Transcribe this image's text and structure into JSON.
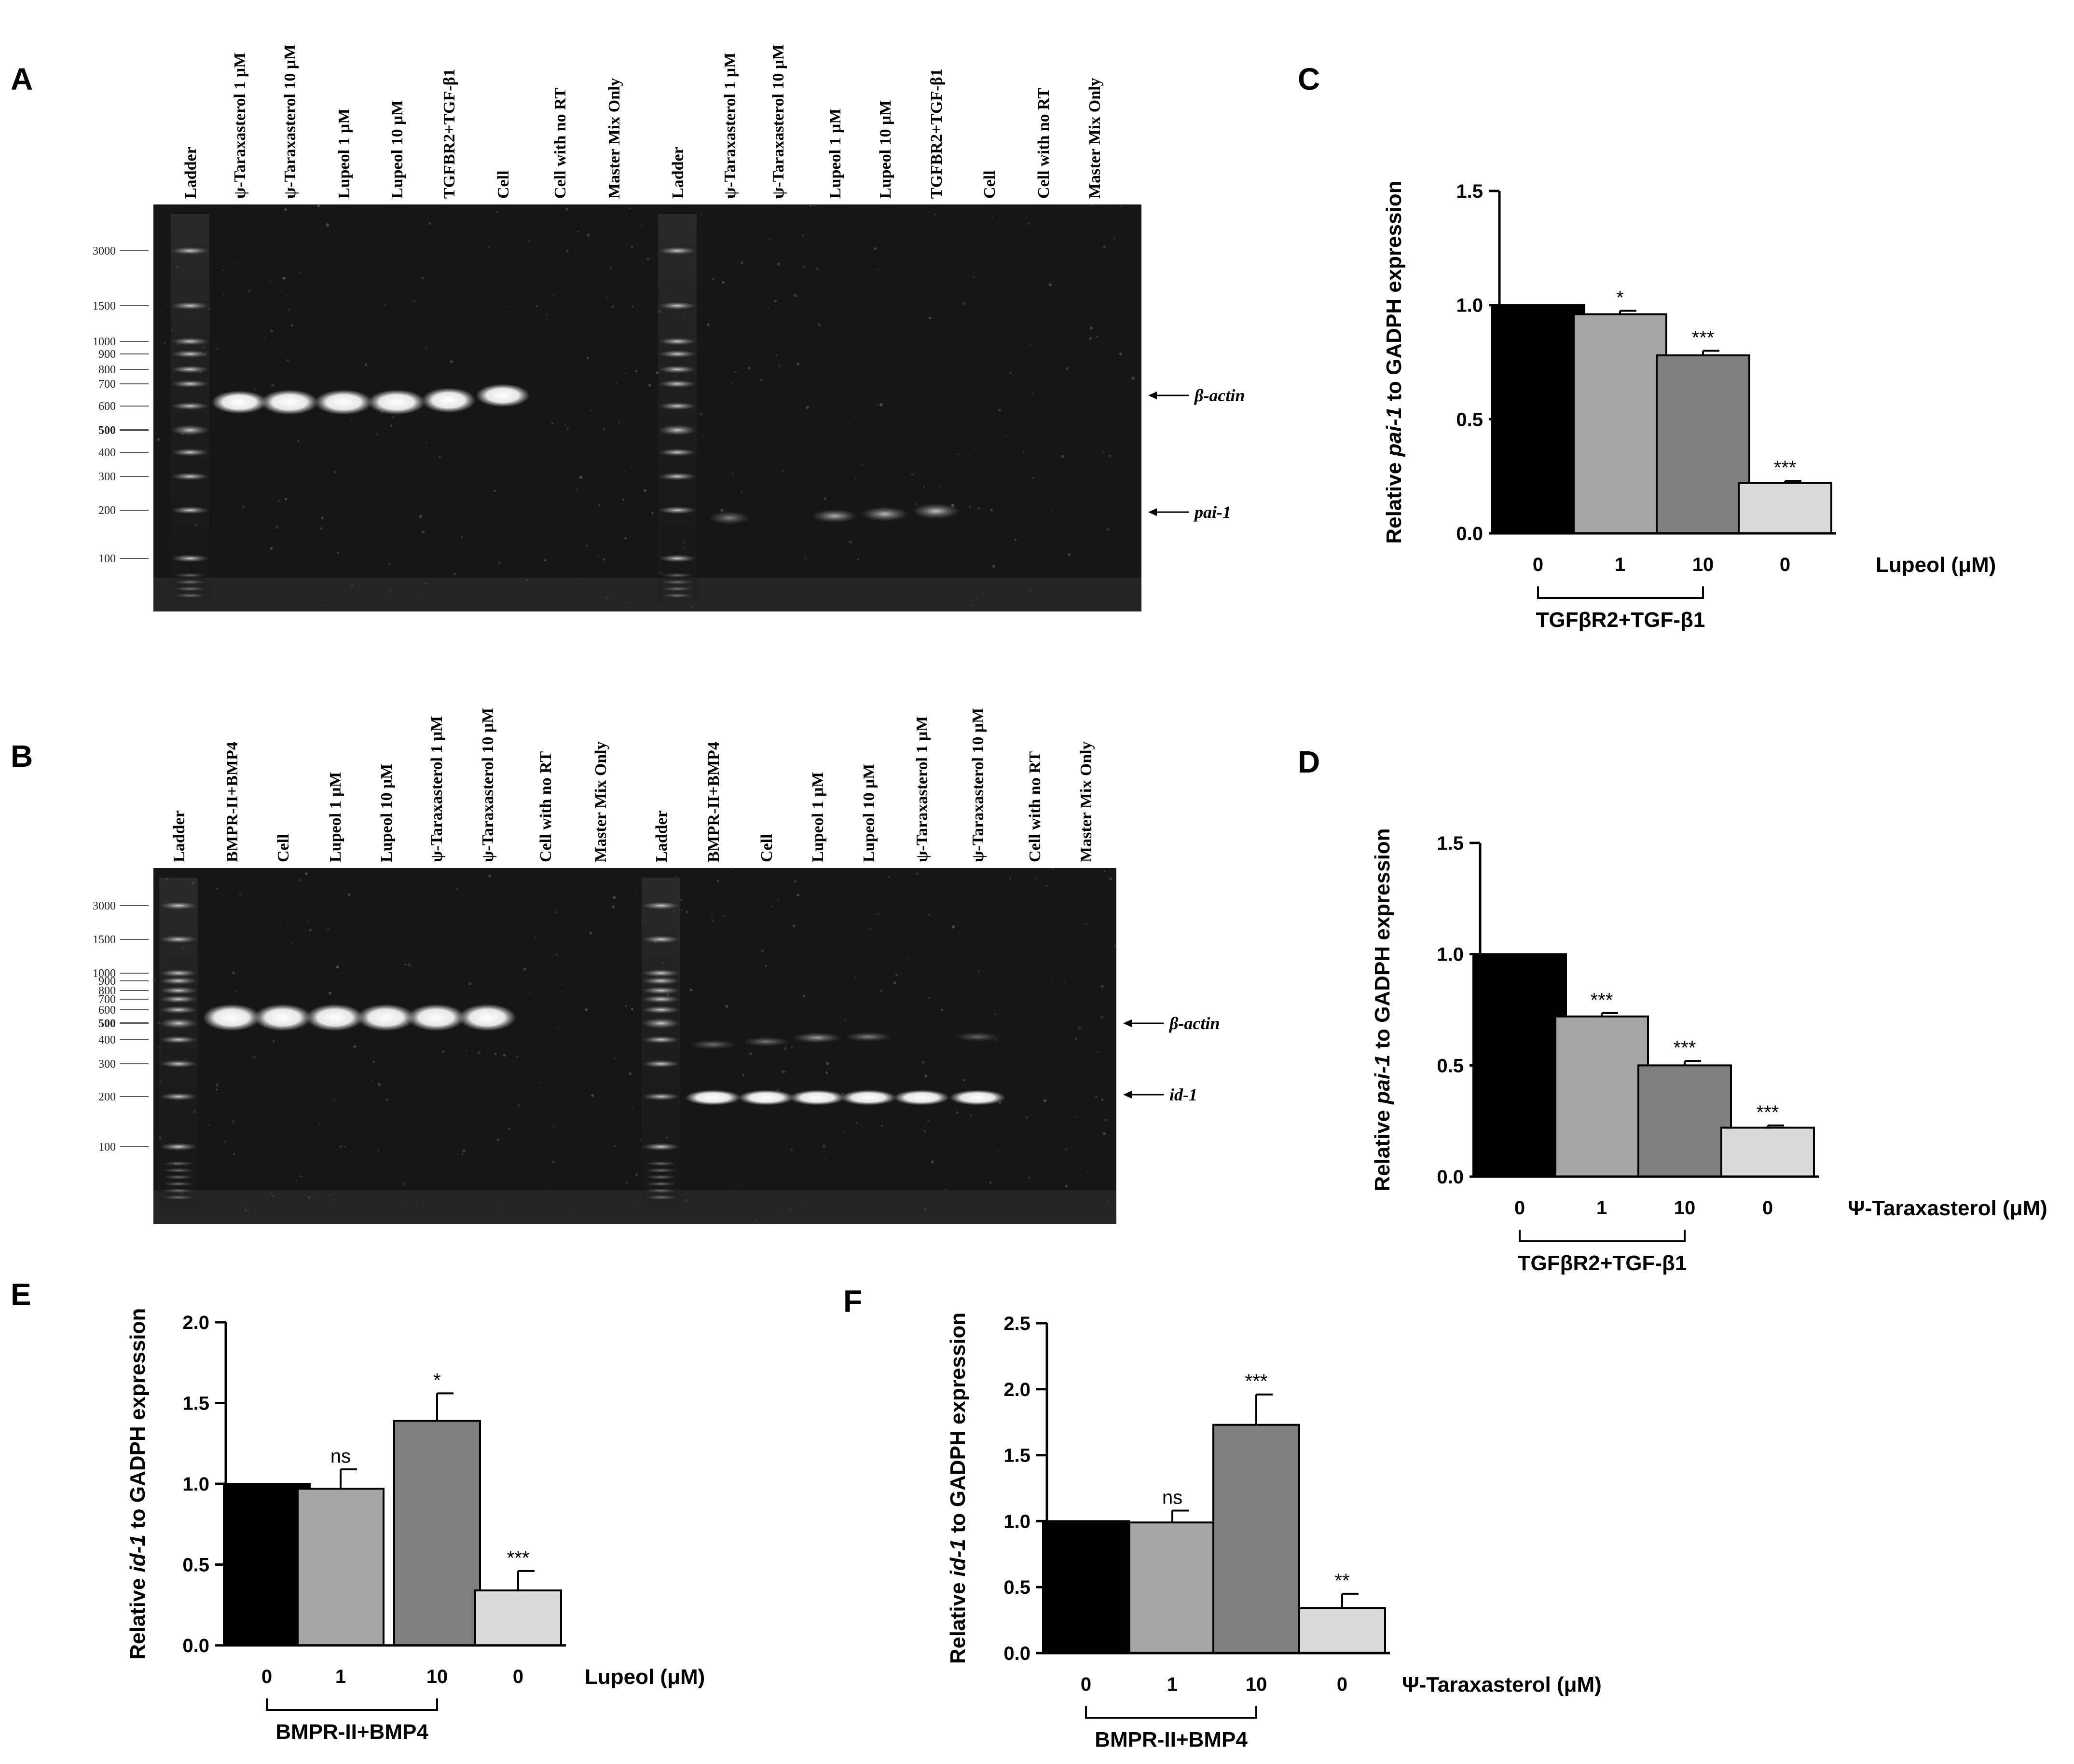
{
  "panel_letters": [
    "A",
    "B",
    "C",
    "D",
    "E",
    "F"
  ],
  "gel_A": {
    "lanes_left": [
      "Ladder",
      "ψ-Taraxasterol 1 μM",
      "ψ-Taraxasterol 10 μM",
      "Lupeol 1 μM",
      "Lupeol 10 μM",
      "TGFBR2+TGF-β1",
      "Cell",
      "Cell with no RT",
      "Master Mix Only"
    ],
    "lanes_right": [
      "Ladder",
      "ψ-Taraxasterol 1 μM",
      "ψ-Taraxasterol 10 μM",
      "Lupeol 1 μM",
      "Lupeol 10 μM",
      "TGFBR2+TGF-β1",
      "Cell",
      "Cell with no RT",
      "Master Mix Only"
    ],
    "markers": [
      "3000",
      "1500",
      "1000",
      "900",
      "800",
      "700",
      "600",
      "500",
      "400",
      "300",
      "200",
      "100"
    ],
    "band_labels": [
      "β-actin",
      "pai-1"
    ]
  },
  "gel_B": {
    "lanes_left": [
      "Ladder",
      "BMPR-II+BMP4",
      "Cell",
      "Lupeol 1 μM",
      "Lupeol 10 μM",
      "ψ-Taraxasterol 1 μM",
      "ψ-Taraxasterol 10 μM",
      "Cell with no RT",
      "Master Mix Only"
    ],
    "lanes_right": [
      "Ladder",
      "BMPR-II+BMP4",
      "Cell",
      "Lupeol 1 μM",
      "Lupeol 10 μM",
      "ψ-Taraxasterol 1 μM",
      "ψ-Taraxasterol 10 μM",
      "Cell with no RT",
      "Master Mix Only"
    ],
    "markers": [
      "3000",
      "1500",
      "1000",
      "900",
      "800",
      "700",
      "600",
      "500",
      "400",
      "300",
      "200",
      "100"
    ],
    "band_labels": [
      "β-actin",
      "id-1"
    ]
  },
  "chart_data": [
    {
      "panel": "C",
      "type": "bar",
      "ylabel_prefix": "Relative ",
      "ylabel_gene": "pai-1",
      "ylabel_suffix": " to GADPH expression",
      "ylim": [
        0,
        1.5
      ],
      "yticks": [
        "0.0",
        "0.5",
        "1.0",
        "1.5"
      ],
      "categories": [
        "0",
        "1",
        "10",
        "0"
      ],
      "values": [
        1.0,
        0.96,
        0.78,
        0.22
      ],
      "errors": [
        0,
        0.015,
        0.02,
        0.01
      ],
      "significance": [
        "",
        "*",
        "***",
        "***"
      ],
      "bar_colors": [
        "#000000",
        "#a6a6a6",
        "#7f7f7f",
        "#d9d9d9"
      ],
      "xlabel": "Lupeol (μM)",
      "bracket_label": "TGFβR2+TGF-β1"
    },
    {
      "panel": "D",
      "type": "bar",
      "ylabel_prefix": "Relative ",
      "ylabel_gene": "pai-1",
      "ylabel_suffix": " to GADPH expression",
      "ylim": [
        0,
        1.5
      ],
      "yticks": [
        "0.0",
        "0.5",
        "1.0",
        "1.5"
      ],
      "categories": [
        "0",
        "1",
        "10",
        "0"
      ],
      "values": [
        1.0,
        0.72,
        0.5,
        0.22
      ],
      "errors": [
        0,
        0.015,
        0.02,
        0.01
      ],
      "significance": [
        "",
        "***",
        "***",
        "***"
      ],
      "bar_colors": [
        "#000000",
        "#a6a6a6",
        "#7f7f7f",
        "#d9d9d9"
      ],
      "xlabel": "Ψ-Taraxasterol (μM)",
      "bracket_label": "TGFβR2+TGF-β1"
    },
    {
      "panel": "E",
      "type": "bar",
      "ylabel_prefix": "Relative ",
      "ylabel_gene": "id-1",
      "ylabel_suffix": " to GADPH expression",
      "ylim": [
        0,
        2.0
      ],
      "yticks": [
        "0.0",
        "0.5",
        "1.0",
        "1.5",
        "2.0"
      ],
      "categories": [
        "0",
        "1",
        "10",
        "0"
      ],
      "values": [
        1.0,
        0.97,
        1.39,
        0.34
      ],
      "errors": [
        0,
        0.12,
        0.17,
        0.12
      ],
      "significance": [
        "",
        "ns",
        "*",
        "***"
      ],
      "bar_colors": [
        "#000000",
        "#a6a6a6",
        "#7f7f7f",
        "#d9d9d9"
      ],
      "xlabel": "Lupeol (μM)",
      "bracket_label": "BMPR-II+BMP4"
    },
    {
      "panel": "F",
      "type": "bar",
      "ylabel_prefix": "Relative ",
      "ylabel_gene": "id-1",
      "ylabel_suffix": " to GADPH expression",
      "ylim": [
        0,
        2.5
      ],
      "yticks": [
        "0.0",
        "0.5",
        "1.0",
        "1.5",
        "2.0",
        "2.5"
      ],
      "categories": [
        "0",
        "1",
        "10",
        "0"
      ],
      "values": [
        1.0,
        0.99,
        1.73,
        0.34
      ],
      "errors": [
        0,
        0.09,
        0.23,
        0.11
      ],
      "significance": [
        "",
        "ns",
        "***",
        "**"
      ],
      "bar_colors": [
        "#000000",
        "#a6a6a6",
        "#7f7f7f",
        "#d9d9d9"
      ],
      "xlabel": "Ψ-Taraxasterol (μM)",
      "bracket_label": "BMPR-II+BMP4"
    }
  ]
}
